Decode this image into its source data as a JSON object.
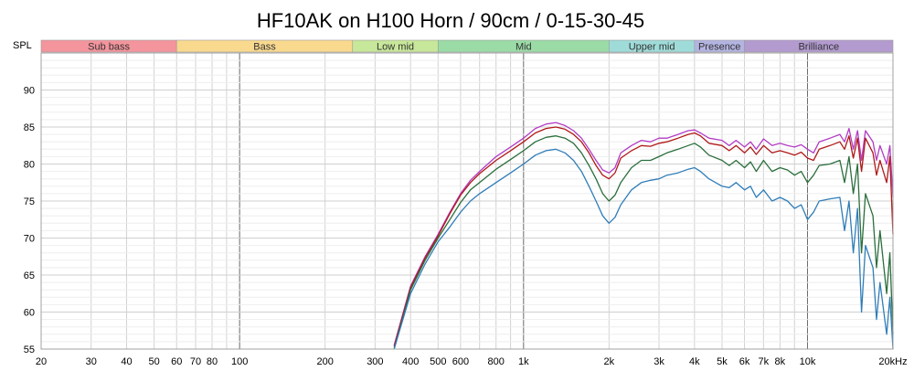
{
  "chart_data": {
    "type": "line",
    "title": "HF10AK on H100 Horn / 90cm / 0-15-30-45",
    "ylabel": "SPL",
    "xscale": "log",
    "xlim": [
      20,
      20000
    ],
    "ylim": [
      55,
      95
    ],
    "grid": true,
    "x_ticks": [
      {
        "value": 20,
        "label": "20"
      },
      {
        "value": 30,
        "label": "30"
      },
      {
        "value": 40,
        "label": "40"
      },
      {
        "value": 50,
        "label": "50"
      },
      {
        "value": 60,
        "label": "60"
      },
      {
        "value": 70,
        "label": "70"
      },
      {
        "value": 80,
        "label": "80"
      },
      {
        "value": 100,
        "label": "100"
      },
      {
        "value": 200,
        "label": "200"
      },
      {
        "value": 300,
        "label": "300"
      },
      {
        "value": 400,
        "label": "400"
      },
      {
        "value": 500,
        "label": "500"
      },
      {
        "value": 600,
        "label": "600"
      },
      {
        "value": 800,
        "label": "800"
      },
      {
        "value": 1000,
        "label": "1k"
      },
      {
        "value": 2000,
        "label": "2k"
      },
      {
        "value": 3000,
        "label": "3k"
      },
      {
        "value": 4000,
        "label": "4k"
      },
      {
        "value": 5000,
        "label": "5k"
      },
      {
        "value": 6000,
        "label": "6k"
      },
      {
        "value": 7000,
        "label": "7k"
      },
      {
        "value": 8000,
        "label": "8k"
      },
      {
        "value": 10000,
        "label": "10k"
      },
      {
        "value": 20000,
        "label": "20kHz"
      }
    ],
    "y_ticks": [
      {
        "value": 55,
        "label": "55"
      },
      {
        "value": 60,
        "label": "60"
      },
      {
        "value": 65,
        "label": "65"
      },
      {
        "value": 70,
        "label": "70"
      },
      {
        "value": 75,
        "label": "75"
      },
      {
        "value": 80,
        "label": "80"
      },
      {
        "value": 85,
        "label": "85"
      },
      {
        "value": 90,
        "label": "90"
      }
    ],
    "bands": [
      {
        "label": "Sub bass",
        "from": 20,
        "to": 60,
        "color": "#f4949c"
      },
      {
        "label": "Bass",
        "from": 60,
        "to": 250,
        "color": "#f9d98e"
      },
      {
        "label": "Low mid",
        "from": 250,
        "to": 500,
        "color": "#c7e79a"
      },
      {
        "label": "Mid",
        "from": 500,
        "to": 2000,
        "color": "#9bdca6"
      },
      {
        "label": "Upper mid",
        "from": 2000,
        "to": 4000,
        "color": "#9fdcd9"
      },
      {
        "label": "Presence",
        "from": 4000,
        "to": 6000,
        "color": "#b4b4e2"
      },
      {
        "label": "Brilliance",
        "from": 6000,
        "to": 20000,
        "color": "#b39bd0"
      }
    ],
    "series": [
      {
        "color": "#b23cc4",
        "x": [
          350,
          400,
          450,
          500,
          550,
          600,
          650,
          700,
          800,
          900,
          1000,
          1100,
          1200,
          1300,
          1400,
          1500,
          1600,
          1700,
          1800,
          1900,
          2000,
          2100,
          2200,
          2400,
          2600,
          2800,
          3000,
          3200,
          3500,
          3800,
          4000,
          4200,
          4500,
          5000,
          5300,
          5600,
          6000,
          6300,
          6600,
          7000,
          7500,
          8000,
          8500,
          9000,
          9500,
          10000,
          10500,
          11000,
          12000,
          13000,
          13500,
          14000,
          14500,
          15000,
          15500,
          16000,
          17000,
          17500,
          18000,
          19000,
          19500,
          20000
        ],
        "y": [
          55.5,
          63.5,
          67.5,
          70.5,
          73.5,
          76,
          77.8,
          79,
          81,
          82.3,
          83.5,
          84.8,
          85.4,
          85.6,
          85.2,
          84.5,
          83.5,
          82,
          80.5,
          79.2,
          78.8,
          79.5,
          81.5,
          82.5,
          83.2,
          83,
          83.5,
          83.5,
          84,
          84.5,
          84.6,
          84.2,
          83.5,
          83.2,
          82.5,
          83.2,
          82.3,
          83,
          82,
          83.4,
          82.5,
          82.8,
          82.5,
          82.3,
          82.6,
          82,
          81.5,
          83,
          83.5,
          84,
          83,
          84.8,
          82,
          84.5,
          80.5,
          84.5,
          83,
          80.5,
          82.5,
          80,
          82.5,
          75.5
        ]
      },
      {
        "color": "#b01818",
        "x": [
          350,
          400,
          450,
          500,
          550,
          600,
          650,
          700,
          800,
          900,
          1000,
          1100,
          1200,
          1300,
          1400,
          1500,
          1600,
          1700,
          1800,
          1900,
          2000,
          2100,
          2200,
          2400,
          2600,
          2800,
          3000,
          3200,
          3500,
          3800,
          4000,
          4200,
          4500,
          5000,
          5300,
          5600,
          6000,
          6300,
          6600,
          7000,
          7500,
          8000,
          8500,
          9000,
          9500,
          10000,
          10500,
          11000,
          12000,
          13000,
          13500,
          14000,
          14500,
          15000,
          15500,
          16000,
          17000,
          17500,
          18000,
          19000,
          19500,
          20000
        ],
        "y": [
          55.3,
          63.3,
          67.3,
          70.3,
          73.3,
          75.8,
          77.5,
          78.7,
          80.5,
          81.8,
          83,
          84.2,
          84.8,
          85,
          84.7,
          84,
          83,
          81.5,
          79.8,
          78.5,
          78,
          78.8,
          80.8,
          81.8,
          82.5,
          82.4,
          82.8,
          83,
          83.5,
          84,
          84.2,
          83.8,
          82.8,
          82.5,
          81.8,
          82.5,
          81.5,
          82.3,
          81.3,
          82.5,
          81.5,
          81.8,
          81.5,
          81.2,
          81.6,
          80.8,
          80.5,
          82,
          82.5,
          83,
          82,
          83.8,
          80.8,
          83.5,
          79,
          83.5,
          81.5,
          78.5,
          80.5,
          77.5,
          81,
          70.5
        ]
      },
      {
        "color": "#2a6e3c",
        "x": [
          350,
          400,
          450,
          500,
          550,
          600,
          650,
          700,
          800,
          900,
          1000,
          1100,
          1200,
          1300,
          1400,
          1500,
          1600,
          1700,
          1800,
          1900,
          2000,
          2100,
          2200,
          2400,
          2600,
          2800,
          3000,
          3200,
          3500,
          3800,
          4000,
          4200,
          4500,
          5000,
          5300,
          5600,
          6000,
          6300,
          6600,
          7000,
          7500,
          8000,
          8500,
          9000,
          9500,
          10000,
          10500,
          11000,
          12000,
          13000,
          13500,
          14000,
          14500,
          15000,
          15500,
          16000,
          17000,
          17500,
          18000,
          19000,
          19500,
          20000
        ],
        "y": [
          55,
          63,
          67,
          70,
          72.5,
          74.8,
          76.5,
          77.5,
          79.3,
          80.6,
          81.8,
          83,
          83.6,
          83.8,
          83.5,
          82.8,
          81.5,
          79.8,
          78,
          76,
          75,
          75.8,
          77.5,
          79.5,
          80.5,
          80.5,
          81,
          81.5,
          82,
          82.5,
          82.8,
          82.3,
          81.2,
          80.5,
          79.8,
          80.5,
          79.5,
          80.3,
          79,
          80.5,
          79,
          79.5,
          79.2,
          78.5,
          79,
          77.5,
          78.5,
          79.8,
          80,
          80.5,
          77.5,
          81,
          76,
          80,
          68,
          76,
          73,
          66,
          71,
          62.5,
          68,
          57
        ]
      },
      {
        "color": "#2f7db8",
        "x": [
          350,
          400,
          450,
          500,
          550,
          600,
          650,
          700,
          800,
          900,
          1000,
          1100,
          1200,
          1300,
          1400,
          1500,
          1600,
          1700,
          1800,
          1900,
          2000,
          2100,
          2200,
          2400,
          2600,
          2800,
          3000,
          3200,
          3500,
          3800,
          4000,
          4200,
          4500,
          5000,
          5300,
          5600,
          6000,
          6300,
          6600,
          7000,
          7500,
          8000,
          8500,
          9000,
          9500,
          10000,
          10500,
          11000,
          12000,
          13000,
          13500,
          14000,
          14500,
          15000,
          15500,
          16000,
          17000,
          17500,
          18000,
          19000,
          19500,
          20000
        ],
        "y": [
          55,
          62.5,
          66.5,
          69.5,
          71.5,
          73.5,
          75,
          76,
          77.5,
          78.8,
          80,
          81.2,
          81.8,
          82,
          81.5,
          80.5,
          79,
          77,
          75,
          73,
          72,
          72.8,
          74.5,
          76.5,
          77.5,
          77.8,
          78,
          78.5,
          78.8,
          79.3,
          79.5,
          79,
          78,
          77,
          76.8,
          77.5,
          76.5,
          77,
          75.5,
          76.5,
          75,
          75.5,
          75,
          74,
          74.5,
          72.5,
          73.5,
          75,
          75.3,
          75.5,
          71,
          75,
          68,
          74,
          60,
          69,
          66,
          59,
          64,
          57,
          62,
          55
        ]
      }
    ]
  }
}
